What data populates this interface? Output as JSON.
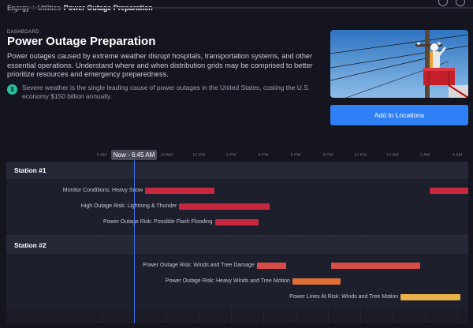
{
  "breadcrumb": {
    "parent": "Energy + Utilities",
    "separator": ">",
    "current": "Power Outage Preparation"
  },
  "header": {
    "kicker": "DASHBOARD",
    "title": "Power Outage Preparation",
    "description": "Power outages caused by extreme weather disrupt hospitals, transportation systems, and other essential operations. Understand where and when distribution grids may be comprised to better prioritize resources and emergency preparedness.",
    "note": "Severe weather is the single leading cause of power outages in the United States, costing the U.S. economy $150 billion annually.",
    "note_icon": "dollar-icon"
  },
  "actions": {
    "add_label": "Add to Locations"
  },
  "timeline": {
    "now_label": "Now - 6:45 AM",
    "hours": [
      "6 AM",
      "10 AM",
      "12 PM",
      "2 PM",
      "4 PM",
      "6 PM",
      "8 PM",
      "10 PM",
      "12 AM",
      "2 AM",
      "4 AM"
    ],
    "stations": [
      {
        "name": "Station #1",
        "events": [
          {
            "label": "Monitor Conditions: Heavy Snow",
            "color": "#c8283f",
            "segments": [
              [
                8.7,
                13.0
              ],
              [
                2.3,
                5.7
              ]
            ]
          },
          {
            "label": "High Outage Risk: Lightning & Thunder",
            "color": "#c8283f",
            "segments": [
              [
                10.8,
                16.4
              ]
            ]
          },
          {
            "label": "Power Outage Risk: Possible Flash Flooding",
            "color": "#c8283f",
            "segments": [
              [
                13.0,
                15.7
              ]
            ]
          }
        ]
      },
      {
        "name": "Station #2",
        "events": [
          {
            "label": "Power Outage Risk: Winds and Tree Damage",
            "color": "#d84c48",
            "segments": [
              [
                15.6,
                17.4
              ],
              [
                20.2,
                1.7
              ]
            ]
          },
          {
            "label": "Power Outage Risk: Heavy Winds and Tree Motion",
            "color": "#e07038",
            "segments": [
              [
                17.8,
                20.8
              ]
            ]
          },
          {
            "label": "Power Lines At Risk: Winds and Tree Motion",
            "color": "#e8b248",
            "segments": [
              [
                0.5,
                4.2
              ]
            ]
          }
        ]
      }
    ]
  }
}
